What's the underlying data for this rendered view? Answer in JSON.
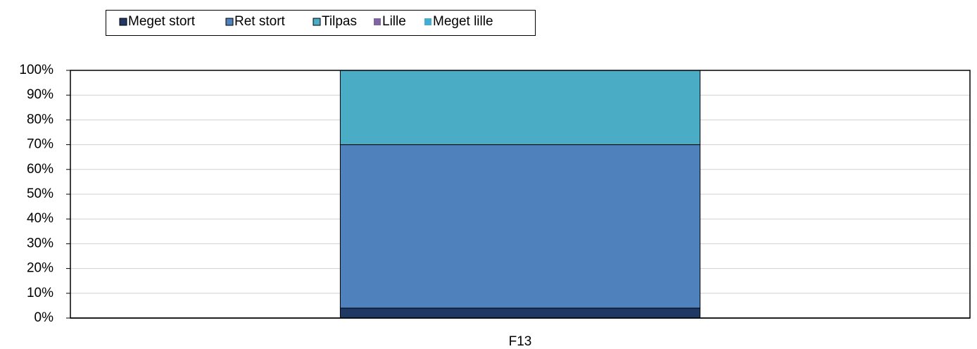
{
  "chart_data": {
    "type": "stacked_bar",
    "categories": [
      "F13"
    ],
    "series": [
      {
        "name": "Meget stort",
        "color": "#1f3864",
        "values": [
          4
        ]
      },
      {
        "name": "Ret stort",
        "color": "#4f81bd",
        "values": [
          66
        ]
      },
      {
        "name": "Tilpas",
        "color": "#4bacc6",
        "values": [
          30
        ]
      },
      {
        "name": "Lille",
        "color": "#8064a2",
        "values": [
          0
        ]
      },
      {
        "name": "Meget lille",
        "color": "#45aed0",
        "values": [
          0
        ]
      }
    ],
    "ylim": [
      0,
      100
    ],
    "yticks": [
      {
        "value": 0,
        "label": "0%"
      },
      {
        "value": 10,
        "label": "10%"
      },
      {
        "value": 20,
        "label": "20%"
      },
      {
        "value": 30,
        "label": "30%"
      },
      {
        "value": 40,
        "label": "40%"
      },
      {
        "value": 50,
        "label": "50%"
      },
      {
        "value": 60,
        "label": "60%"
      },
      {
        "value": 70,
        "label": "70%"
      },
      {
        "value": 80,
        "label": "80%"
      },
      {
        "value": 90,
        "label": "90%"
      },
      {
        "value": 100,
        "label": "100%"
      }
    ],
    "grid": true,
    "legend": "top"
  }
}
